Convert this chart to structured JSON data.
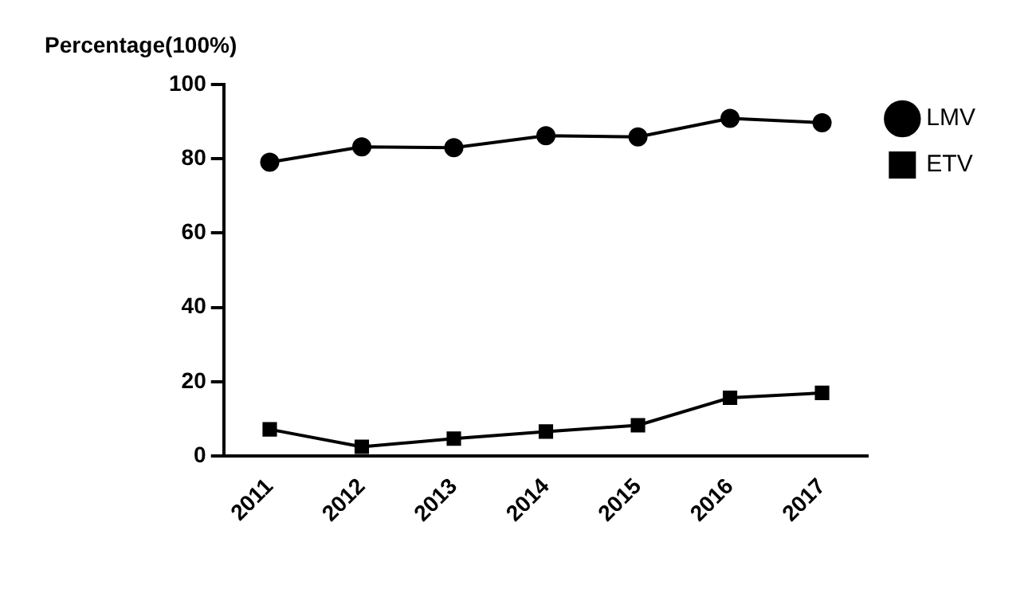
{
  "chart_data": {
    "type": "line",
    "ylabel": "Percentage(100%)",
    "categories": [
      "2011",
      "2012",
      "2013",
      "2014",
      "2015",
      "2016",
      "2017"
    ],
    "series": [
      {
        "name": "LMV",
        "color": "#000000",
        "marker": "circle",
        "values": [
          79.1,
          83.2,
          83,
          86.2,
          85.9,
          90.9,
          89.7
        ]
      },
      {
        "name": "ETV",
        "color": "#000000",
        "marker": "square",
        "values": [
          7.2,
          2.5,
          4.7,
          6.6,
          8.3,
          15.7,
          17
        ]
      }
    ],
    "ylim": [
      0,
      100
    ],
    "yticks": [
      0,
      20,
      40,
      60,
      80,
      100
    ],
    "grid": false,
    "legend": "top right",
    "line_style": "solid"
  }
}
